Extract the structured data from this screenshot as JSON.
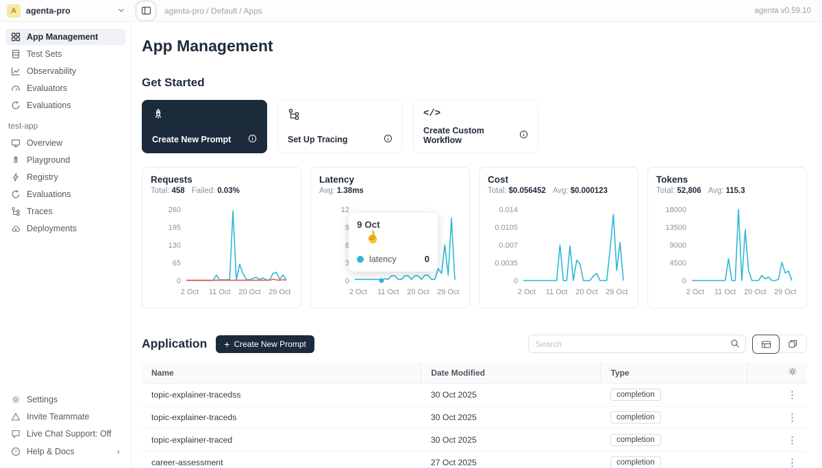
{
  "topbar": {
    "avatar_letter": "A",
    "workspace": "agenta-pro",
    "breadcrumb": "agenta-pro / Default / Apps",
    "version": "agenta v0.59.10"
  },
  "sidebar": {
    "main_items": [
      {
        "label": "App Management"
      },
      {
        "label": "Test Sets"
      },
      {
        "label": "Observability"
      },
      {
        "label": "Evaluators"
      },
      {
        "label": "Evaluations"
      }
    ],
    "app_section_label": "test-app",
    "app_items": [
      {
        "label": "Overview"
      },
      {
        "label": "Playground"
      },
      {
        "label": "Registry"
      },
      {
        "label": "Evaluations"
      },
      {
        "label": "Traces"
      },
      {
        "label": "Deployments"
      }
    ],
    "footer_items": [
      {
        "label": "Settings"
      },
      {
        "label": "Invite Teammate"
      },
      {
        "label": "Live Chat Support: Off"
      },
      {
        "label": "Help & Docs"
      }
    ]
  },
  "main": {
    "title": "App Management",
    "get_started": {
      "title": "Get Started",
      "cards": [
        {
          "label": "Create New Prompt"
        },
        {
          "label": "Set Up Tracing"
        },
        {
          "label": "Create Custom Workflow"
        }
      ]
    },
    "application": {
      "title": "Application",
      "create_button": "Create New Prompt",
      "search_placeholder": "Search",
      "table": {
        "columns": [
          "Name",
          "Date Modified",
          "Type"
        ],
        "rows": [
          {
            "name": "topic-explainer-tracedss",
            "date": "30 Oct 2025",
            "type": "completion"
          },
          {
            "name": "topic-explainer-traceds",
            "date": "30 Oct 2025",
            "type": "completion"
          },
          {
            "name": "topic-explainer-traced",
            "date": "30 Oct 2025",
            "type": "completion"
          },
          {
            "name": "career-assessment",
            "date": "27 Oct 2025",
            "type": "completion"
          }
        ]
      }
    }
  },
  "tooltip": {
    "date": "9 Oct",
    "series_label": "latency",
    "value": "0"
  },
  "colors": {
    "accent": "#1c2b3b",
    "line_primary": "#2bb7d8",
    "line_failed": "#f0564b"
  },
  "chart_data": [
    {
      "type": "line",
      "title": "Requests",
      "stats": [
        {
          "label": "Total:",
          "value": "458"
        },
        {
          "label": "Failed:",
          "value": "0.03%"
        }
      ],
      "x_ticks": [
        "2 Oct",
        "11 Oct",
        "20 Oct",
        "29 Oct"
      ],
      "x_tick_days": [
        2,
        11,
        20,
        29
      ],
      "y_ticks": [
        "0",
        "65",
        "130",
        "195",
        "260"
      ],
      "ylim": [
        0,
        260
      ],
      "series": [
        {
          "name": "requests",
          "color": "#2bb7d8",
          "values": [
            0,
            0,
            0,
            0,
            0,
            0,
            0,
            0,
            0,
            20,
            2,
            3,
            2,
            5,
            255,
            3,
            60,
            25,
            4,
            2,
            8,
            12,
            3,
            10,
            2,
            2,
            26,
            30,
            4,
            20,
            3
          ]
        },
        {
          "name": "failed",
          "color": "#f0564b",
          "values": [
            1,
            1,
            1,
            1,
            1,
            1,
            1,
            1,
            1,
            1,
            1,
            1,
            1,
            1,
            1,
            1,
            1,
            1,
            1,
            1,
            1,
            1,
            1,
            1,
            1,
            1,
            5,
            2,
            1,
            3,
            1
          ]
        }
      ]
    },
    {
      "type": "line",
      "title": "Latency",
      "stats": [
        {
          "label": "Avg:",
          "value": "1.38ms"
        }
      ],
      "x_ticks": [
        "2 Oct",
        "11 Oct",
        "20 Oct",
        "29 Oct"
      ],
      "x_tick_days": [
        2,
        11,
        20,
        29
      ],
      "y_ticks": [
        "0",
        "3",
        "6",
        "9",
        "12"
      ],
      "ylim": [
        0,
        12
      ],
      "marker": {
        "day": 9,
        "value": 0
      },
      "series": [
        {
          "name": "latency",
          "color": "#2bb7d8",
          "values": [
            0.2,
            0.2,
            0.2,
            0.2,
            0.2,
            0.2,
            0.2,
            0.2,
            0,
            0.3,
            0.2,
            0.8,
            0.8,
            0.2,
            0.2,
            0.8,
            0.8,
            0.2,
            0.8,
            0.8,
            0.2,
            0.9,
            0.9,
            0.2,
            0.2,
            2,
            1.2,
            6,
            0.9,
            10.5,
            0.1
          ]
        }
      ]
    },
    {
      "type": "line",
      "title": "Cost",
      "stats": [
        {
          "label": "Total:",
          "value": "$0.056452"
        },
        {
          "label": "Avg:",
          "value": "$0.000123"
        }
      ],
      "x_ticks": [
        "2 Oct",
        "11 Oct",
        "20 Oct",
        "29 Oct"
      ],
      "x_tick_days": [
        2,
        11,
        20,
        29
      ],
      "y_ticks": [
        "0",
        "0.0035",
        "0.007",
        "0.0105",
        "0.014"
      ],
      "ylim": [
        0,
        0.014
      ],
      "series": [
        {
          "name": "cost",
          "color": "#2bb7d8",
          "values": [
            0,
            0,
            0,
            0,
            0,
            0,
            0,
            0,
            0,
            0,
            0,
            0.007,
            0,
            0,
            0.0068,
            0,
            0.004,
            0.0033,
            0,
            0,
            0,
            0.0009,
            0.0014,
            0,
            0,
            0,
            0.006,
            0.013,
            0.002,
            0.0075,
            0
          ]
        }
      ]
    },
    {
      "type": "line",
      "title": "Tokens",
      "stats": [
        {
          "label": "Total:",
          "value": "52,806"
        },
        {
          "label": "Avg:",
          "value": "115.3"
        }
      ],
      "x_ticks": [
        "2 Oct",
        "11 Oct",
        "20 Oct",
        "29 Oct"
      ],
      "x_tick_days": [
        2,
        11,
        20,
        29
      ],
      "y_ticks": [
        "0",
        "4500",
        "9000",
        "13500",
        "18000"
      ],
      "ylim": [
        0,
        18000
      ],
      "series": [
        {
          "name": "tokens",
          "color": "#2bb7d8",
          "values": [
            0,
            0,
            0,
            0,
            0,
            0,
            0,
            0,
            0,
            0,
            0,
            5500,
            0,
            0,
            18000,
            0,
            12800,
            2600,
            0,
            0,
            0,
            1300,
            400,
            900,
            0,
            0,
            300,
            4600,
            1900,
            2400,
            0
          ]
        }
      ]
    }
  ]
}
